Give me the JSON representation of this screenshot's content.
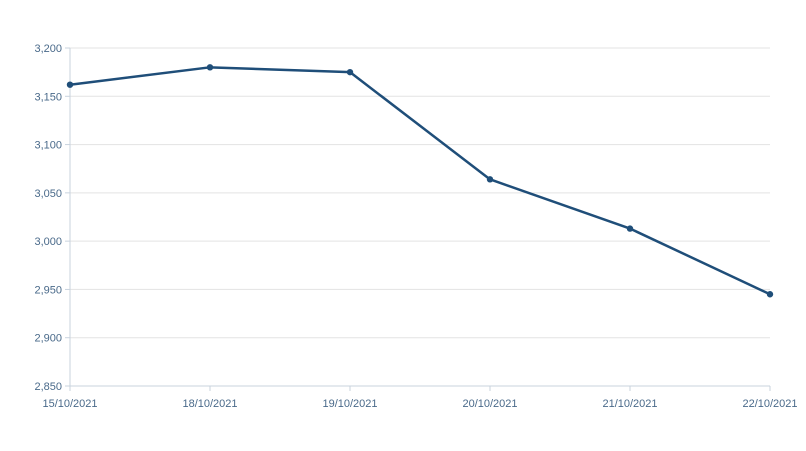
{
  "chart_data": {
    "type": "line",
    "title": "",
    "xlabel": "",
    "ylabel": "",
    "categories": [
      "15/10/2021",
      "18/10/2021",
      "19/10/2021",
      "20/10/2021",
      "21/10/2021",
      "22/10/2021"
    ],
    "series": [
      {
        "values": [
          3162,
          3180,
          3175,
          3064,
          3013,
          2945
        ]
      }
    ],
    "ylim": [
      2850,
      3200
    ],
    "yticks": [
      2850,
      2900,
      2950,
      3000,
      3050,
      3100,
      3150,
      3200
    ],
    "ytick_labels": [
      "2,850",
      "2,900",
      "2,950",
      "3,000",
      "3,050",
      "3,100",
      "3,150",
      "3,200"
    ],
    "grid": true,
    "legend": "none",
    "colors": {
      "line": "#1f4e79",
      "grid": "#e3e3e3",
      "axis": "#c9d3de",
      "tick_text": "#4a6a8a"
    }
  }
}
